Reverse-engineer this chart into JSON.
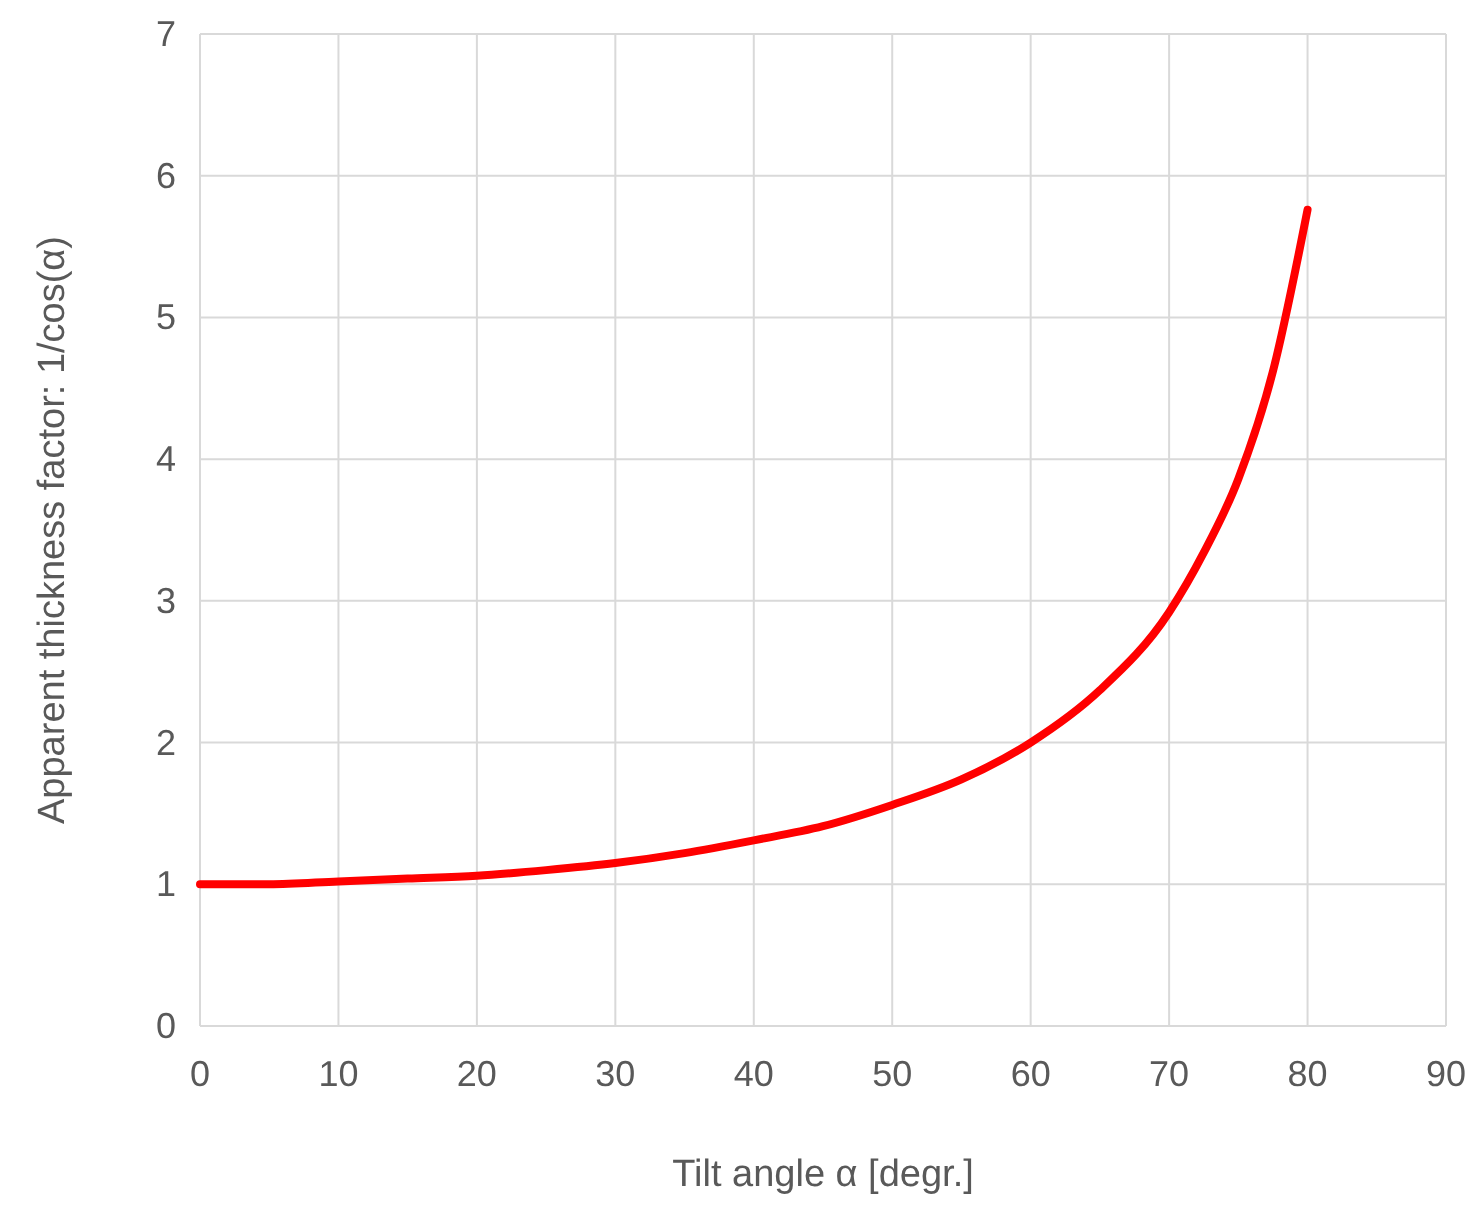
{
  "chart_data": {
    "type": "line",
    "xlabel": "Tilt angle α [degr.]",
    "ylabel": "Apparent thickness factor: 1/cos(α)",
    "x": [
      0,
      5,
      10,
      15,
      20,
      25,
      30,
      35,
      40,
      45,
      50,
      55,
      60,
      65,
      70,
      72.5,
      75,
      77.5,
      80
    ],
    "series": [
      {
        "color": "#ff0000",
        "values": [
          1,
          1,
          1.02,
          1.04,
          1.06,
          1.1,
          1.15,
          1.22,
          1.31,
          1.41,
          1.56,
          1.74,
          2,
          2.37,
          2.92,
          3.34,
          3.86,
          4.62,
          5.76
        ]
      }
    ],
    "xlim": [
      0,
      90
    ],
    "xticks": [
      0,
      10,
      20,
      30,
      40,
      50,
      60,
      70,
      80,
      90
    ],
    "ylim": [
      0,
      7
    ],
    "yticks": [
      0,
      1,
      2,
      3,
      4,
      5,
      6,
      7
    ],
    "grid": true,
    "marker": "none",
    "line_style": "solid"
  }
}
